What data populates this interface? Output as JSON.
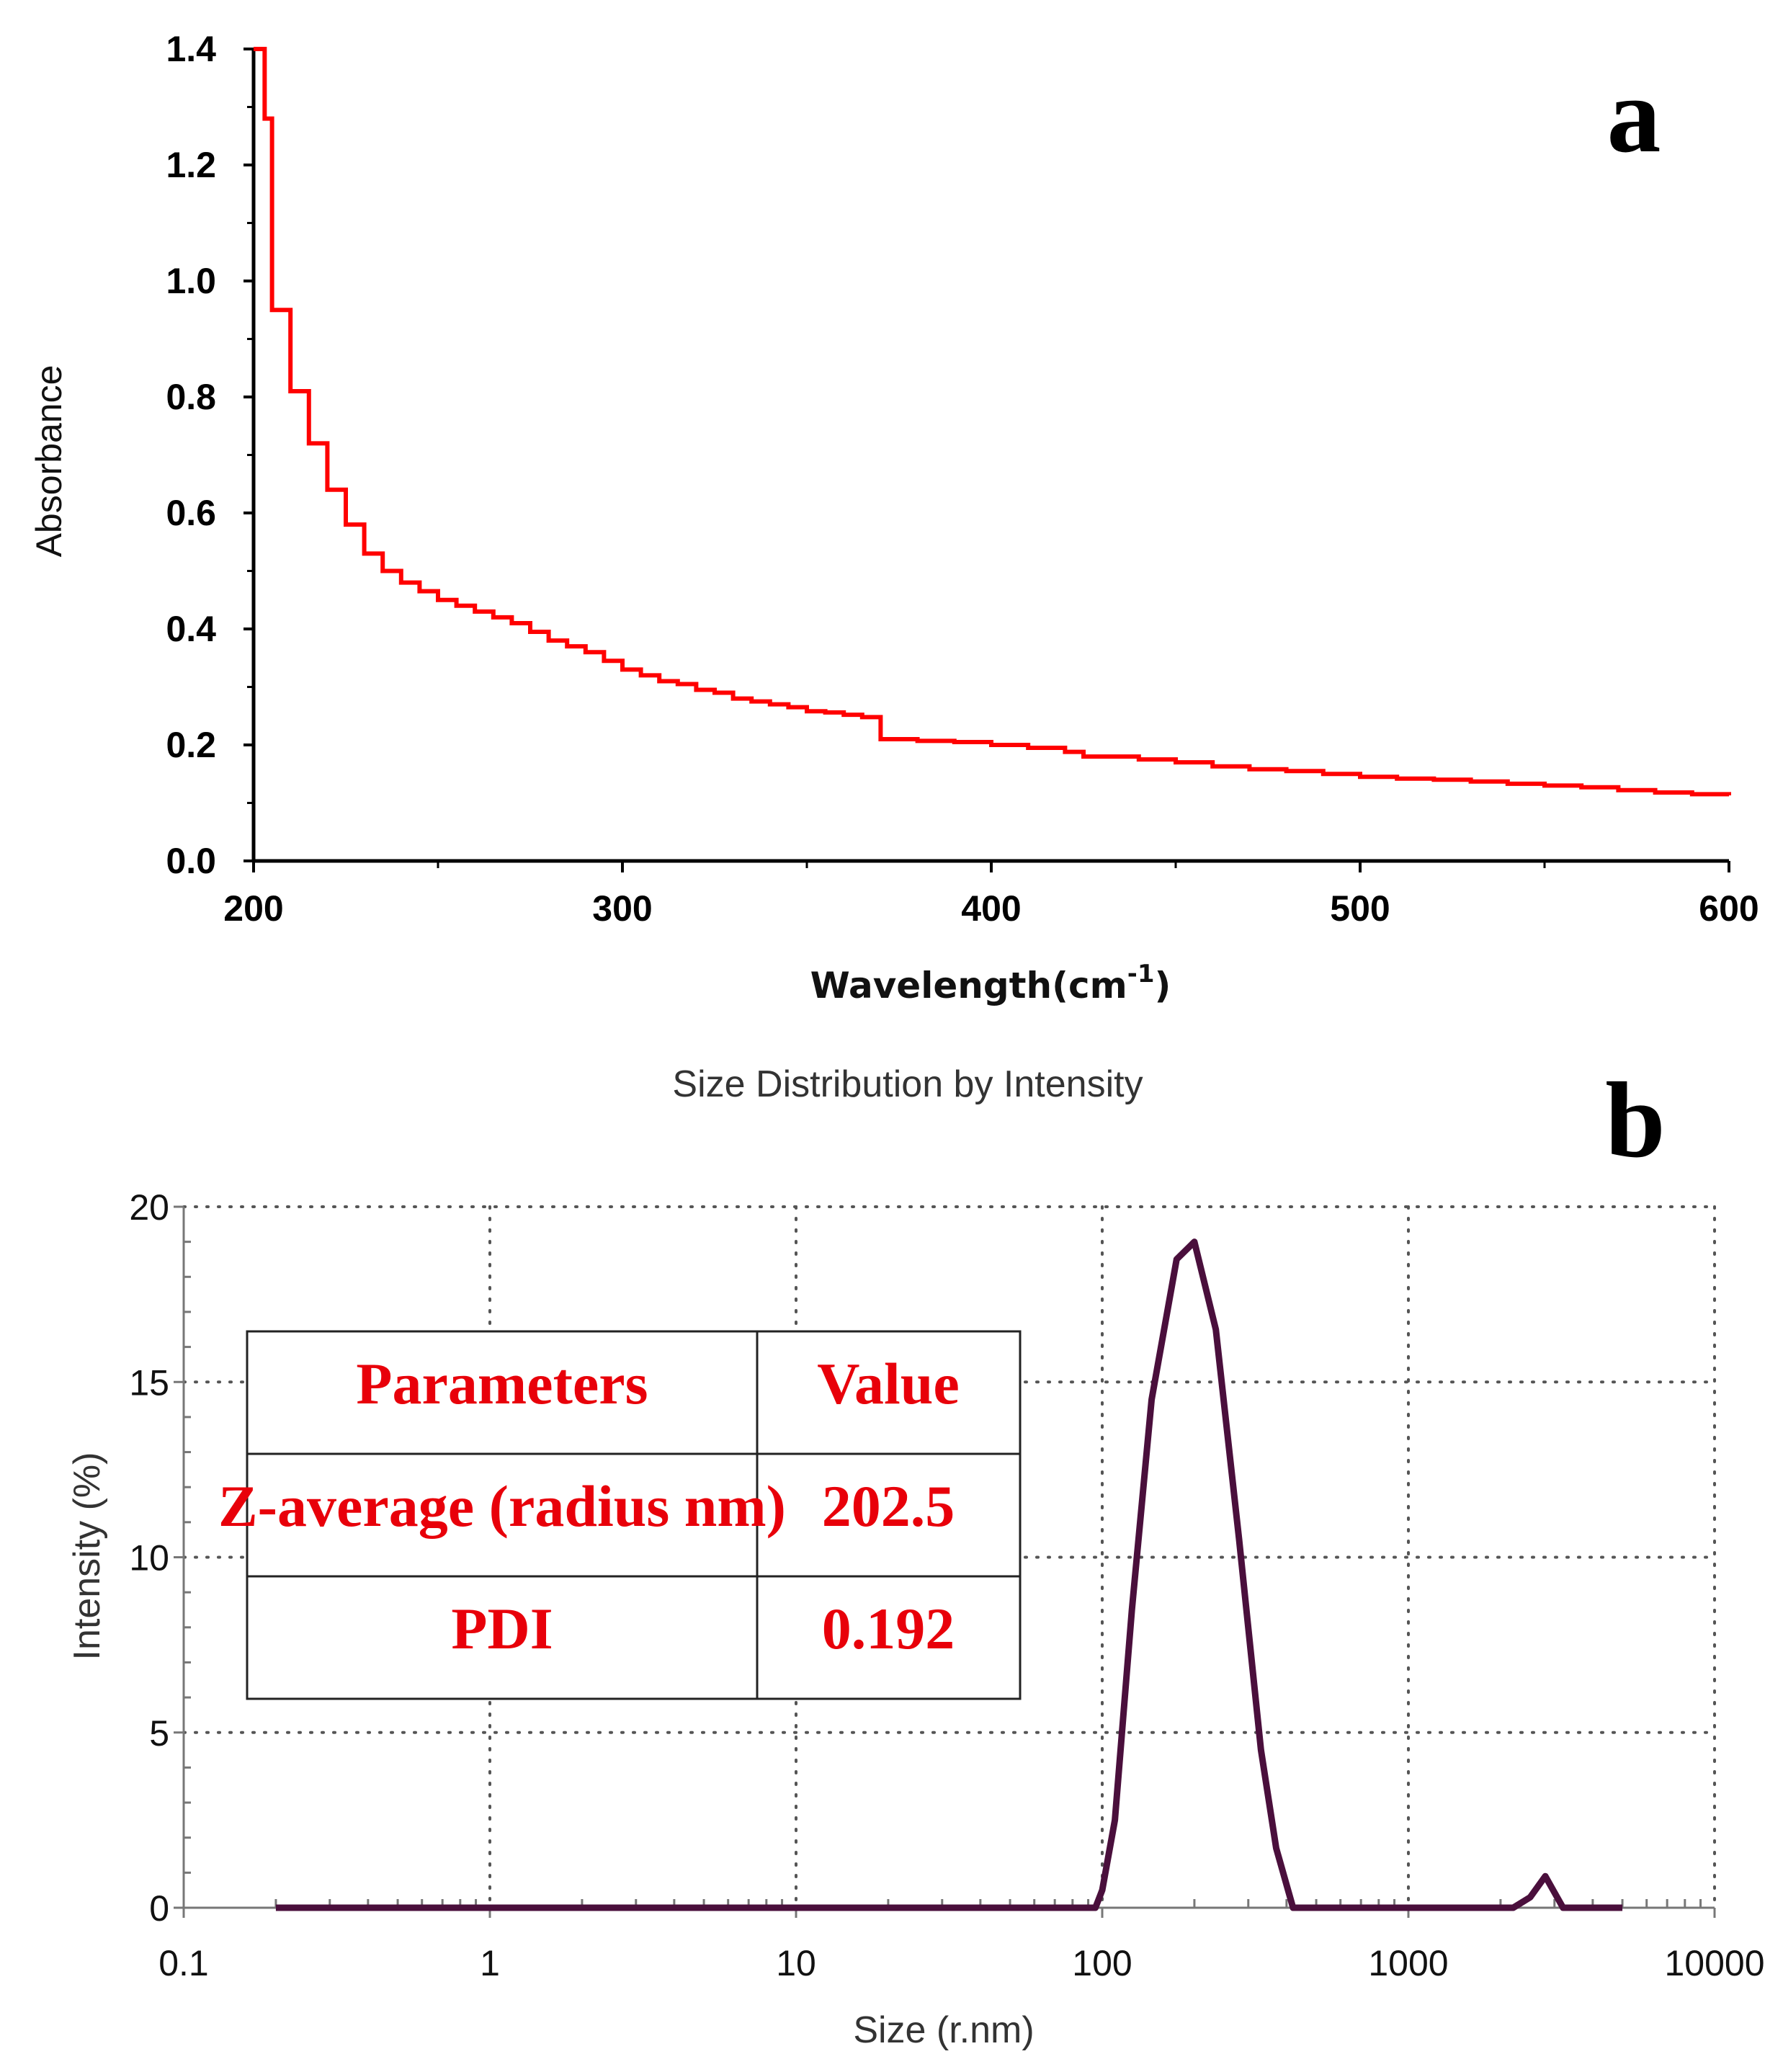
{
  "chart_data": [
    {
      "panel": "a",
      "type": "line",
      "title": "",
      "xlabel": "Wavelength(cm",
      "xlabel_superscript": "-1",
      "xlabel_close": ")",
      "ylabel": "Absorbance",
      "xlim": [
        200,
        600
      ],
      "ylim": [
        0.0,
        1.4
      ],
      "x_ticks": [
        "200",
        "300",
        "400",
        "500",
        "600"
      ],
      "y_ticks": [
        "0.0",
        "0.2",
        "0.4",
        "0.6",
        "0.8",
        "1.0",
        "1.2",
        "1.4"
      ],
      "grid": false,
      "series": [
        {
          "name": "Absorbance",
          "color": "#ff0000",
          "step": true,
          "x": [
            200,
            203,
            205,
            210,
            215,
            220,
            225,
            230,
            235,
            240,
            245,
            250,
            255,
            260,
            265,
            270,
            275,
            280,
            285,
            290,
            295,
            300,
            305,
            310,
            315,
            320,
            325,
            330,
            335,
            340,
            345,
            350,
            355,
            360,
            365,
            370,
            380,
            390,
            400,
            410,
            420,
            425,
            440,
            450,
            460,
            470,
            480,
            490,
            500,
            510,
            520,
            530,
            540,
            550,
            560,
            570,
            580,
            590,
            600
          ],
          "y": [
            1.4,
            1.28,
            0.95,
            0.81,
            0.72,
            0.64,
            0.58,
            0.53,
            0.5,
            0.48,
            0.465,
            0.45,
            0.44,
            0.43,
            0.42,
            0.41,
            0.395,
            0.38,
            0.37,
            0.36,
            0.345,
            0.33,
            0.32,
            0.31,
            0.305,
            0.295,
            0.29,
            0.28,
            0.275,
            0.27,
            0.265,
            0.258,
            0.256,
            0.252,
            0.248,
            0.21,
            0.207,
            0.205,
            0.2,
            0.195,
            0.188,
            0.18,
            0.175,
            0.17,
            0.163,
            0.158,
            0.155,
            0.15,
            0.145,
            0.142,
            0.14,
            0.137,
            0.133,
            0.13,
            0.127,
            0.122,
            0.118,
            0.115,
            0.113
          ]
        }
      ]
    },
    {
      "panel": "b",
      "type": "line",
      "title": "Size Distribution by Intensity",
      "xlabel": "Size (r.nm)",
      "ylabel": "Intensity (%)",
      "x_scale": "log",
      "xlim": [
        0.1,
        10000
      ],
      "ylim": [
        0,
        20
      ],
      "x_ticks": [
        "0.1",
        "1",
        "10",
        "100",
        "1000",
        "10000"
      ],
      "y_ticks": [
        "0",
        "5",
        "10",
        "15",
        "20"
      ],
      "grid": true,
      "series": [
        {
          "name": "Intensity",
          "color": "#4a0f3c",
          "x": [
            0.2,
            10,
            95,
            100,
            110,
            125,
            145,
            175,
            200,
            235,
            280,
            330,
            370,
            420,
            2200,
            2500,
            2800,
            3200,
            5000
          ],
          "y": [
            0,
            0,
            0,
            0.5,
            2.5,
            8.5,
            14.5,
            18.5,
            19.0,
            16.5,
            10.5,
            4.5,
            1.7,
            0,
            0,
            0.3,
            0.9,
            0,
            0
          ]
        }
      ],
      "table": {
        "headers": [
          "Parameters",
          "Value"
        ],
        "rows": [
          [
            "Z-average (radius nm)",
            "202.5"
          ],
          [
            "PDI",
            "0.192"
          ]
        ]
      }
    }
  ],
  "labels": {
    "panel_a": "a",
    "panel_b": "b"
  },
  "colors": {
    "line_a": "#ff0000",
    "line_b": "#4a0f3c",
    "table_text": "#e8000a"
  }
}
